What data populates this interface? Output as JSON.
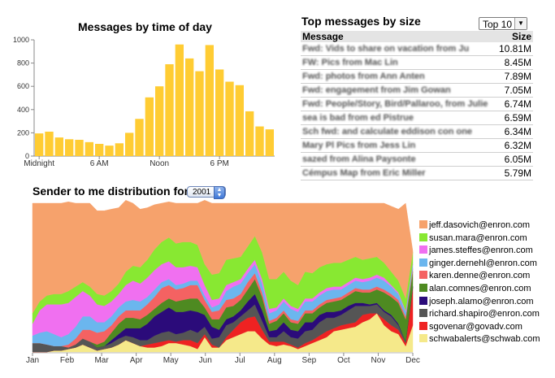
{
  "bar_chart_title": "Messages by time of day",
  "top_title": "Top messages by size",
  "top_select": "Top 10",
  "table": {
    "col_message": "Message",
    "col_size": "Size",
    "rows": [
      {
        "message": "Fwd: Vids to share on vacation from Ju",
        "size": "10.81M"
      },
      {
        "message": "FW: Pics from Mac Lin",
        "size": "8.45M"
      },
      {
        "message": "Fwd: photos from Ann Anten",
        "size": "7.89M"
      },
      {
        "message": "Fwd: engagement from Jim Gowan",
        "size": "7.05M"
      },
      {
        "message": "Fwd: People/Story, Bird/Pallaroo, from Julie",
        "size": "6.74M"
      },
      {
        "message": "sea is bad from ed Pistrue",
        "size": "6.59M"
      },
      {
        "message": "Sch fwd: and calculate eddison con one",
        "size": "6.34M"
      },
      {
        "message": "Mary Pl Pics from Jess Lin",
        "size": "6.32M"
      },
      {
        "message": "sazed from Alina Paysonte",
        "size": "6.05M"
      },
      {
        "message": "Cémpus Map from Eric Miller",
        "size": "5.79M"
      }
    ]
  },
  "stream_title": "Sender to me distribution for",
  "stream_select": "2001",
  "colors": {
    "bar": "#FFCC33"
  },
  "chart_data": [
    {
      "type": "bar",
      "title": "Messages by time of day",
      "xlabel": "",
      "ylabel": "",
      "ylim": [
        0,
        1000
      ],
      "y_ticks": [
        "0",
        "200",
        "400",
        "600",
        "800",
        "1000"
      ],
      "x_tick_labels": [
        "Midnight",
        "6 AM",
        "Noon",
        "6 PM"
      ],
      "x_tick_hours": [
        0,
        6,
        12,
        18
      ],
      "categories": [
        "0",
        "1",
        "2",
        "3",
        "4",
        "5",
        "6",
        "7",
        "8",
        "9",
        "10",
        "11",
        "12",
        "13",
        "14",
        "15",
        "16",
        "17",
        "18",
        "19",
        "20",
        "21",
        "22",
        "23"
      ],
      "values": [
        195,
        210,
        160,
        145,
        140,
        120,
        105,
        90,
        110,
        200,
        320,
        505,
        600,
        790,
        960,
        840,
        730,
        955,
        745,
        640,
        610,
        385,
        255,
        230
      ],
      "grid": false
    },
    {
      "type": "area",
      "title": "Sender to me distribution for 2001",
      "stacked": true,
      "months": [
        "Jan",
        "Feb",
        "Mar",
        "Apr",
        "May",
        "Jun",
        "Jul",
        "Aug",
        "Sep",
        "Oct",
        "Nov",
        "Dec"
      ],
      "ylim": [
        0,
        100
      ],
      "legend_position": "right",
      "series": [
        {
          "name": "schwabalerts@schwab.com",
          "color": "#F5E98A",
          "values": [
            0,
            0,
            0,
            1,
            1,
            2,
            3,
            5,
            3,
            1,
            2,
            3,
            5,
            8,
            6,
            4,
            3,
            3,
            4,
            6,
            6,
            5,
            4,
            2,
            10,
            3,
            3,
            8,
            10,
            12,
            14,
            14,
            9,
            5,
            4,
            5,
            4,
            2,
            4,
            6,
            8,
            10,
            14,
            15,
            16,
            17,
            20,
            22,
            26,
            18,
            14,
            12,
            4,
            18
          ]
        },
        {
          "name": "sgovenar@govadv.com",
          "color": "#EE2222",
          "values": [
            0,
            0,
            0,
            0,
            0,
            0,
            0,
            0,
            0,
            0,
            0,
            0,
            0,
            0,
            0,
            0,
            2,
            3,
            3,
            2,
            1,
            3,
            4,
            4,
            2,
            2,
            0,
            2,
            5,
            8,
            9,
            10,
            6,
            2,
            3,
            2,
            1,
            1,
            2,
            2,
            3,
            4,
            2,
            3,
            3,
            3,
            5,
            4,
            0,
            4,
            4,
            3,
            2,
            25
          ]
        },
        {
          "name": "richard.shapiro@enron.com",
          "color": "#555555",
          "values": [
            6,
            6,
            5,
            3,
            3,
            1,
            2,
            4,
            4,
            2,
            2,
            3,
            4,
            3,
            4,
            4,
            3,
            5,
            6,
            6,
            5,
            5,
            7,
            7,
            5,
            4,
            7,
            8,
            5,
            4,
            5,
            8,
            6,
            3,
            3,
            7,
            5,
            6,
            8,
            7,
            9,
            9,
            7,
            7,
            9,
            11,
            6,
            5,
            6,
            5,
            6,
            3,
            1,
            1
          ]
        },
        {
          "name": "joseph.alamo@enron.com",
          "color": "#2B0B7A",
          "values": [
            0,
            0,
            0,
            0,
            0,
            0,
            0,
            0,
            0,
            0,
            0,
            2,
            3,
            5,
            6,
            8,
            11,
            13,
            14,
            16,
            15,
            14,
            13,
            14,
            8,
            8,
            5,
            4,
            4,
            4,
            6,
            7,
            7,
            4,
            5,
            6,
            5,
            5,
            6,
            5,
            5,
            4,
            4,
            3,
            3,
            2,
            2,
            1,
            1,
            1,
            1,
            1,
            0,
            0
          ]
        },
        {
          "name": "alan.comnes@enron.com",
          "color": "#4E8A21",
          "values": [
            0,
            0,
            0,
            0,
            0,
            0,
            0,
            0,
            0,
            2,
            3,
            5,
            7,
            7,
            7,
            6,
            6,
            5,
            6,
            6,
            7,
            8,
            8,
            9,
            5,
            5,
            7,
            8,
            7,
            7,
            8,
            10,
            9,
            5,
            6,
            6,
            5,
            5,
            6,
            6,
            5,
            6,
            7,
            7,
            7,
            8,
            7,
            8,
            9,
            12,
            12,
            14,
            15,
            10
          ]
        },
        {
          "name": "karen.denne@enron.com",
          "color": "#F46262",
          "values": [
            0,
            0,
            0,
            0,
            0,
            2,
            4,
            6,
            8,
            8,
            7,
            5,
            5,
            5,
            5,
            6,
            7,
            8,
            10,
            9,
            8,
            8,
            9,
            9,
            5,
            5,
            6,
            5,
            5,
            4,
            5,
            4,
            3,
            2,
            2,
            2,
            2,
            2,
            2,
            2,
            2,
            2,
            2,
            2,
            2,
            2,
            2,
            2,
            2,
            2,
            2,
            2,
            2,
            2
          ]
        },
        {
          "name": "ginger.dernehl@enron.com",
          "color": "#6BB6EE",
          "values": [
            5,
            7,
            9,
            8,
            6,
            7,
            8,
            9,
            9,
            7,
            6,
            6,
            6,
            6,
            7,
            6,
            5,
            5,
            4,
            4,
            3,
            3,
            3,
            3,
            3,
            3,
            4,
            6,
            8,
            7,
            6,
            6,
            6,
            5,
            5,
            6,
            7,
            6,
            6,
            6,
            6,
            6,
            6,
            5,
            5,
            5,
            5,
            6,
            6,
            6,
            5,
            4,
            3,
            3
          ]
        },
        {
          "name": "james.steffes@enron.com",
          "color": "#F070F0",
          "values": [
            8,
            15,
            18,
            20,
            22,
            21,
            20,
            17,
            14,
            12,
            11,
            10,
            9,
            11,
            13,
            12,
            13,
            13,
            12,
            12,
            12,
            11,
            10,
            9,
            7,
            5,
            4,
            4,
            3,
            3,
            3,
            3,
            3,
            3,
            2,
            2,
            2,
            2,
            2,
            2,
            2,
            2,
            2,
            2,
            2,
            2,
            2,
            2,
            2,
            2,
            1,
            1,
            1,
            1
          ]
        },
        {
          "name": "susan.mara@enron.com",
          "color": "#88E832",
          "values": [
            7,
            6,
            6,
            7,
            7,
            8,
            7,
            6,
            6,
            7,
            7,
            7,
            7,
            9,
            10,
            11,
            12,
            14,
            15,
            16,
            16,
            17,
            16,
            15,
            14,
            17,
            17,
            17,
            16,
            15,
            15,
            16,
            18,
            20,
            19,
            18,
            17,
            16,
            18,
            17,
            17,
            16,
            16,
            16,
            15,
            14,
            13,
            13,
            12,
            10,
            9,
            8,
            8,
            7
          ]
        },
        {
          "name": "jeff.dasovich@enron.com",
          "color": "#F6A26C",
          "values": [
            74,
            66,
            62,
            61,
            61,
            60,
            56,
            53,
            56,
            56,
            57,
            55,
            51,
            48,
            42,
            39,
            35,
            30,
            26,
            24,
            27,
            26,
            26,
            28,
            43,
            48,
            47,
            38,
            37,
            36,
            29,
            22,
            33,
            51,
            51,
            46,
            52,
            55,
            46,
            47,
            43,
            41,
            40,
            40,
            38,
            36,
            38,
            37,
            36,
            40,
            44,
            48,
            64,
            1
          ]
        }
      ]
    }
  ]
}
